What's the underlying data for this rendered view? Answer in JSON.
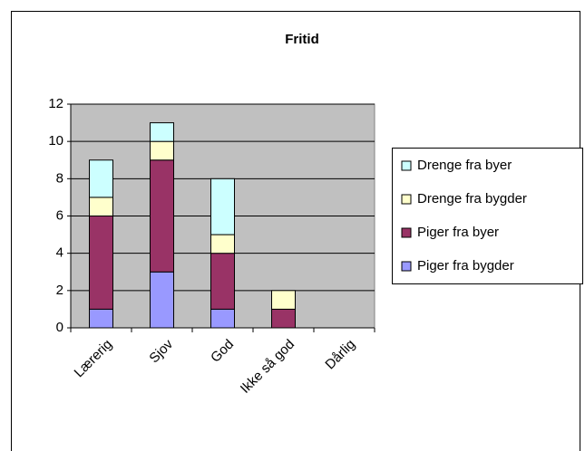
{
  "chart_data": {
    "type": "stacked_bar",
    "title": "Fritid",
    "categories": [
      "Lærerig",
      "Sjov",
      "God",
      "Ikke så god",
      "Dårlig"
    ],
    "series": [
      {
        "name": "Piger fra bygder",
        "color": "#9999ff",
        "values": [
          1,
          3,
          1,
          0,
          0
        ]
      },
      {
        "name": "Piger fra byer",
        "color": "#993366",
        "values": [
          5,
          6,
          3,
          1,
          0
        ]
      },
      {
        "name": "Drenge fra bygder",
        "color": "#ffffcc",
        "values": [
          1,
          1,
          1,
          1,
          0
        ]
      },
      {
        "name": "Drenge fra byer",
        "color": "#ccffff",
        "values": [
          2,
          1,
          3,
          0,
          0
        ]
      }
    ],
    "ylim": [
      0,
      12
    ],
    "yticks": [
      0,
      2,
      4,
      6,
      8,
      10,
      12
    ],
    "grid": true,
    "legend": "right"
  }
}
